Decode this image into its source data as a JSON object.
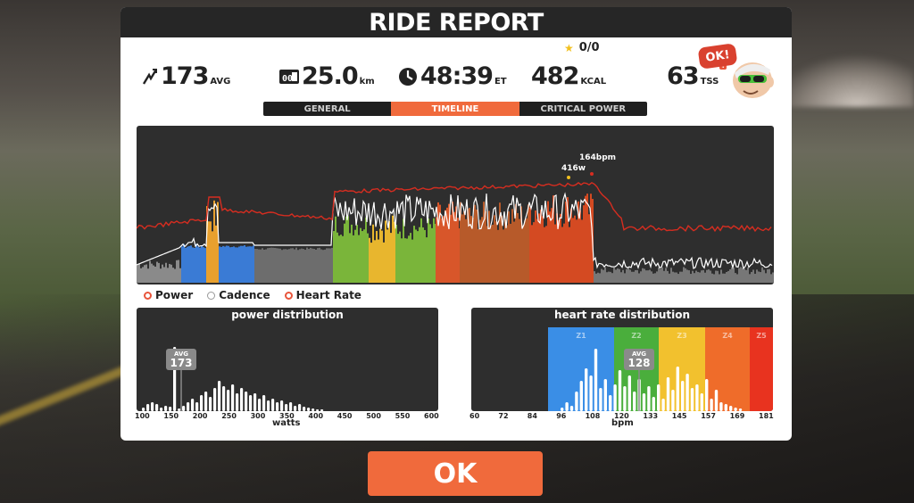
{
  "modal": {
    "title": "RIDE REPORT"
  },
  "stats": {
    "power": {
      "value": "173",
      "unit": "AVG",
      "icon": "power-bolt-icon"
    },
    "distance": {
      "value": "25.0",
      "unit": "km",
      "icon": "odometer-icon"
    },
    "time": {
      "value": "48:39",
      "unit": "ET",
      "icon": "clock-icon"
    },
    "calories": {
      "value": "482",
      "unit": "KCAL"
    },
    "tss": {
      "value": "63",
      "unit": "TSS",
      "info": "?"
    }
  },
  "stars": {
    "icon": "star-icon",
    "text": "0/0"
  },
  "ok_bubble": "OK!",
  "tabs": [
    {
      "label": "GENERAL",
      "active": false
    },
    {
      "label": "TIMELINE",
      "active": true
    },
    {
      "label": "CRITICAL POWER",
      "active": false
    }
  ],
  "timeline": {
    "peak_power_label": "416w",
    "peak_hr_label": "164bpm"
  },
  "legend": [
    {
      "label": "Power",
      "color": "#e8553b"
    },
    {
      "label": "Cadence",
      "color": "#ffffff"
    },
    {
      "label": "Heart Rate",
      "color": "#e8553b"
    }
  ],
  "power_distribution": {
    "title": "power distribution",
    "avg_label": "AVG",
    "avg_value": "173",
    "xlabel": "watts",
    "ticks": [
      "100",
      "150",
      "200",
      "250",
      "300",
      "350",
      "400",
      "450",
      "500",
      "550",
      "600"
    ]
  },
  "hr_distribution": {
    "title": "heart rate distribution",
    "avg_label": "AVG",
    "avg_value": "128",
    "xlabel": "bpm",
    "zones": [
      "Z1",
      "Z2",
      "Z3",
      "Z4",
      "Z5"
    ],
    "zone_colors": [
      "#3a8ee6",
      "#4aae3c",
      "#f2c12e",
      "#ef6c2a",
      "#e8331f"
    ],
    "ticks": [
      "60",
      "72",
      "84",
      "96",
      "108",
      "120",
      "133",
      "145",
      "157",
      "169",
      "181"
    ]
  },
  "ok_button": "OK"
}
